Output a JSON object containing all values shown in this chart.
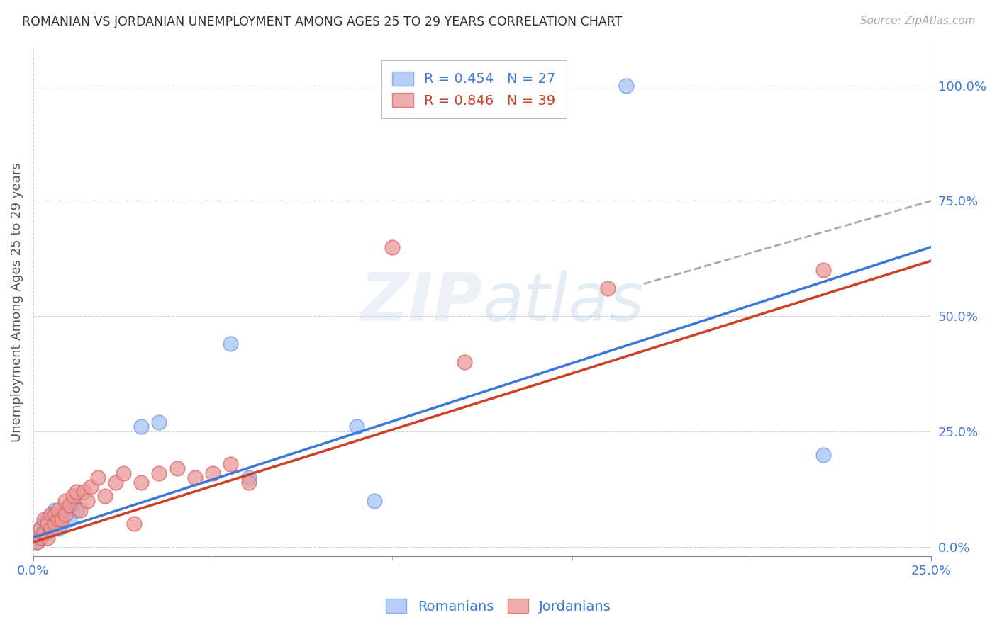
{
  "title": "ROMANIAN VS JORDANIAN UNEMPLOYMENT AMONG AGES 25 TO 29 YEARS CORRELATION CHART",
  "source": "Source: ZipAtlas.com",
  "ylabel": "Unemployment Among Ages 25 to 29 years",
  "ytick_labels": [
    "0.0%",
    "25.0%",
    "50.0%",
    "75.0%",
    "100.0%"
  ],
  "ytick_values": [
    0.0,
    0.25,
    0.5,
    0.75,
    1.0
  ],
  "xlim": [
    0.0,
    0.25
  ],
  "ylim": [
    -0.02,
    1.08
  ],
  "legend_r_romanian": "R = 0.454",
  "legend_n_romanian": "N = 27",
  "legend_r_jordanian": "R = 0.846",
  "legend_n_jordanian": "N = 39",
  "romanian_color": "#a4c2f4",
  "romanian_edge": "#6d9eeb",
  "jordanian_color": "#ea9999",
  "jordanian_edge": "#e06666",
  "trendline_romanian_color": "#3c78d8",
  "trendline_jordanian_color": "#cc4125",
  "watermark_color": "#d0e4f7",
  "romanian_x": [
    0.001,
    0.002,
    0.002,
    0.003,
    0.003,
    0.004,
    0.004,
    0.005,
    0.005,
    0.006,
    0.006,
    0.007,
    0.007,
    0.008,
    0.008,
    0.009,
    0.01,
    0.011,
    0.012,
    0.03,
    0.035,
    0.055,
    0.06,
    0.09,
    0.095,
    0.165,
    0.22
  ],
  "romanian_y": [
    0.01,
    0.02,
    0.04,
    0.03,
    0.05,
    0.06,
    0.03,
    0.07,
    0.04,
    0.05,
    0.08,
    0.04,
    0.06,
    0.05,
    0.07,
    0.08,
    0.06,
    0.09,
    0.08,
    0.26,
    0.27,
    0.44,
    0.15,
    0.26,
    0.1,
    1.0,
    0.2
  ],
  "jordanian_x": [
    0.001,
    0.002,
    0.002,
    0.003,
    0.003,
    0.004,
    0.004,
    0.005,
    0.005,
    0.006,
    0.006,
    0.007,
    0.007,
    0.008,
    0.009,
    0.009,
    0.01,
    0.011,
    0.012,
    0.013,
    0.014,
    0.015,
    0.016,
    0.018,
    0.02,
    0.023,
    0.025,
    0.028,
    0.03,
    0.035,
    0.04,
    0.045,
    0.05,
    0.055,
    0.06,
    0.1,
    0.12,
    0.16,
    0.22
  ],
  "jordanian_y": [
    0.01,
    0.02,
    0.04,
    0.03,
    0.06,
    0.05,
    0.02,
    0.07,
    0.04,
    0.05,
    0.07,
    0.06,
    0.08,
    0.06,
    0.1,
    0.07,
    0.09,
    0.11,
    0.12,
    0.08,
    0.12,
    0.1,
    0.13,
    0.15,
    0.11,
    0.14,
    0.16,
    0.05,
    0.14,
    0.16,
    0.17,
    0.15,
    0.16,
    0.18,
    0.14,
    0.65,
    0.4,
    0.56,
    0.6
  ],
  "trendline_rom_x0": 0.0,
  "trendline_rom_y0": 0.02,
  "trendline_rom_x1": 0.25,
  "trendline_rom_y1": 0.65,
  "trendline_jor_x0": 0.0,
  "trendline_jor_y0": 0.01,
  "trendline_jor_x1": 0.25,
  "trendline_jor_y1": 0.62
}
